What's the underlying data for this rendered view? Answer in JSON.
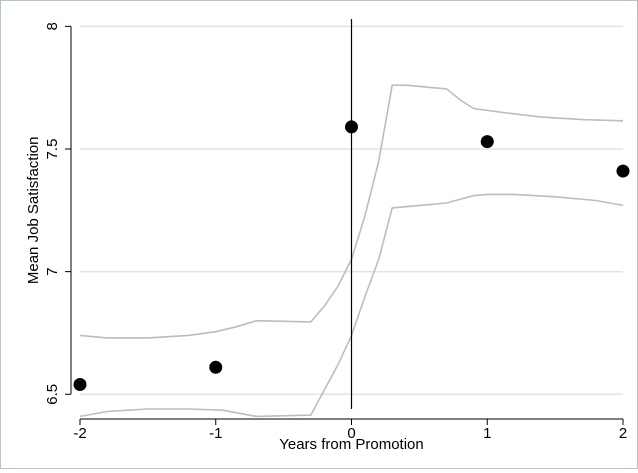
{
  "chart_data": {
    "type": "scatter",
    "title": "",
    "xlabel": "Years from Promotion",
    "ylabel": "Mean Job Satisfaction",
    "xlim": [
      -2,
      2
    ],
    "ylim": [
      6.44,
      8.03
    ],
    "x_ticks": [
      -2,
      -1,
      0,
      1,
      2
    ],
    "y_ticks": [
      6.5,
      7,
      7.5,
      8
    ],
    "x_tick_labels": [
      "-2",
      "-1",
      "0",
      "1",
      "2"
    ],
    "y_tick_labels": [
      "6.5",
      "7",
      "7.5",
      "8"
    ],
    "grid": "horizontal",
    "vertical_reference_line_x": 0,
    "points": [
      {
        "x": -2,
        "y": 6.54
      },
      {
        "x": -1,
        "y": 6.61
      },
      {
        "x": 0,
        "y": 7.59
      },
      {
        "x": 1,
        "y": 7.53
      },
      {
        "x": 2,
        "y": 7.41
      }
    ],
    "upper_band": [
      [
        -2,
        6.74
      ],
      [
        -1.8,
        6.73
      ],
      [
        -1.5,
        6.73
      ],
      [
        -1.2,
        6.74
      ],
      [
        -1,
        6.755
      ],
      [
        -0.85,
        6.775
      ],
      [
        -0.7,
        6.8
      ],
      [
        -0.3,
        6.795
      ],
      [
        -0.2,
        6.86
      ],
      [
        -0.1,
        6.94
      ],
      [
        0,
        7.05
      ],
      [
        0.1,
        7.23
      ],
      [
        0.2,
        7.45
      ],
      [
        0.3,
        7.76
      ],
      [
        0.4,
        7.76
      ],
      [
        0.7,
        7.745
      ],
      [
        0.8,
        7.7
      ],
      [
        0.9,
        7.665
      ],
      [
        1.1,
        7.65
      ],
      [
        1.4,
        7.63
      ],
      [
        1.7,
        7.62
      ],
      [
        2,
        7.615
      ]
    ],
    "lower_band": [
      [
        -2,
        6.41
      ],
      [
        -1.8,
        6.43
      ],
      [
        -1.5,
        6.44
      ],
      [
        -1.2,
        6.44
      ],
      [
        -0.95,
        6.435
      ],
      [
        -0.85,
        6.425
      ],
      [
        -0.7,
        6.41
      ],
      [
        -0.3,
        6.415
      ],
      [
        -0.1,
        6.62
      ],
      [
        0,
        6.74
      ],
      [
        0.1,
        6.9
      ],
      [
        0.2,
        7.05
      ],
      [
        0.3,
        7.26
      ],
      [
        0.5,
        7.27
      ],
      [
        0.7,
        7.28
      ],
      [
        0.9,
        7.31
      ],
      [
        1,
        7.315
      ],
      [
        1.2,
        7.315
      ],
      [
        1.5,
        7.305
      ],
      [
        1.8,
        7.29
      ],
      [
        2,
        7.27
      ]
    ],
    "colors": {
      "marker": "#000000",
      "band": "#bdbdbd",
      "grid": "#e3e3e3",
      "reference_line": "#000000",
      "axis": "#000000"
    }
  }
}
